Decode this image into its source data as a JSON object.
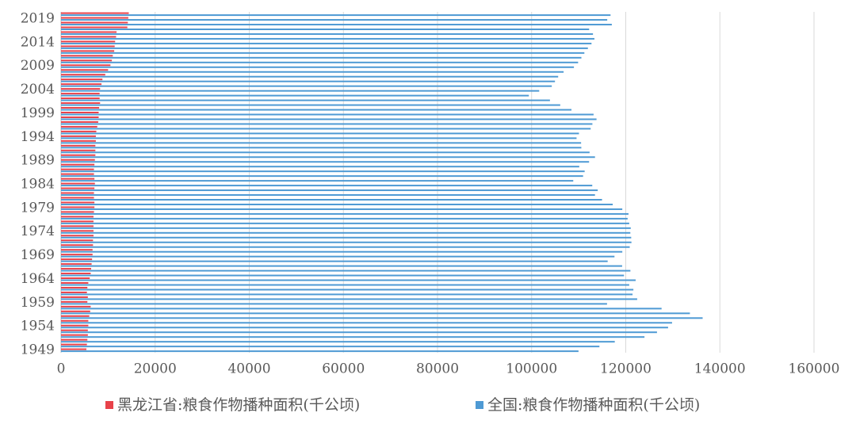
{
  "chart_data": {
    "type": "hbar",
    "categories": [
      1949,
      null,
      null,
      null,
      null,
      1954,
      null,
      null,
      null,
      null,
      1959,
      null,
      null,
      null,
      null,
      1964,
      null,
      null,
      null,
      null,
      1969,
      null,
      null,
      null,
      null,
      1974,
      null,
      null,
      null,
      null,
      1979,
      null,
      null,
      null,
      null,
      1984,
      null,
      null,
      null,
      null,
      1989,
      null,
      null,
      null,
      null,
      1994,
      null,
      null,
      null,
      null,
      1999,
      null,
      null,
      null,
      null,
      2004,
      null,
      null,
      null,
      null,
      2009,
      null,
      null,
      null,
      null,
      2014,
      null,
      null,
      null,
      null,
      2019,
      null
    ],
    "series": [
      {
        "name": "黑龙江省:粮食作物播种面积(千公顷)",
        "color": "#e8424a",
        "values": [
          5400,
          5500,
          5600,
          5700,
          5700,
          5800,
          5800,
          6000,
          6200,
          6300,
          5600,
          5700,
          5500,
          5600,
          5800,
          6100,
          6300,
          6400,
          6500,
          6600,
          6700,
          6700,
          6800,
          6800,
          6900,
          6900,
          6900,
          6900,
          6900,
          7000,
          7100,
          7100,
          7000,
          7000,
          7100,
          7200,
          7100,
          7000,
          7000,
          7100,
          7200,
          7300,
          7300,
          7300,
          7400,
          7400,
          7500,
          7700,
          7900,
          8000,
          8000,
          8100,
          8300,
          8200,
          8200,
          8300,
          8600,
          8800,
          9400,
          10000,
          10500,
          10800,
          11000,
          11300,
          11400,
          11500,
          11700,
          11800,
          14100,
          14200,
          14300,
          14400
        ]
      },
      {
        "name": "全国:粮食作物播种面积(千公顷)",
        "color": "#4e9ad4",
        "values": [
          109959,
          114406,
          117669,
          123979,
          126637,
          128994,
          129839,
          136339,
          133633,
          127613,
          116023,
          122429,
          121443,
          121621,
          120741,
          122103,
          119627,
          120988,
          119230,
          116157,
          117604,
          119267,
          120846,
          121209,
          121156,
          120976,
          121062,
          120743,
          120400,
          120587,
          119263,
          117234,
          114958,
          113462,
          114047,
          112884,
          108845,
          110933,
          111268,
          110123,
          112205,
          113466,
          112314,
          110560,
          110509,
          109544,
          110060,
          112548,
          112912,
          113787,
          113161,
          108463,
          106080,
          103891,
          99410,
          101606,
          104278,
          104958,
          105638,
          106793,
          108986,
          109876,
          110573,
          111205,
          111956,
          112723,
          113343,
          113034,
          112220,
          117038,
          116064,
          116768
        ]
      }
    ],
    "xlim": [
      0,
      160000
    ],
    "xticks": [
      0,
      20000,
      40000,
      60000,
      80000,
      100000,
      120000,
      140000,
      160000
    ],
    "grid": true
  }
}
